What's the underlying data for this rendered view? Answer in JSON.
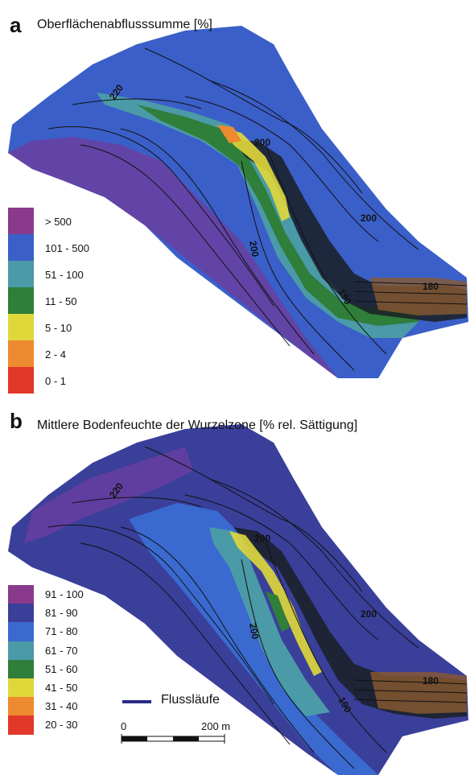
{
  "panel_a": {
    "letter": "a",
    "title": "Oberflächenabflusssumme [%]",
    "legend": [
      {
        "label": "> 500",
        "color": "#8a3a8c"
      },
      {
        "label": "101 - 500",
        "color": "#3a5fc8"
      },
      {
        "label": "51 - 100",
        "color": "#4b9aa8"
      },
      {
        "label": "11 - 50",
        "color": "#2f7e3a"
      },
      {
        "label": "5 - 10",
        "color": "#e0d83a"
      },
      {
        "label": "2 - 4",
        "color": "#ee8a30"
      },
      {
        "label": "0 - 1",
        "color": "#e2382a"
      }
    ],
    "contour_labels": [
      "220",
      "200",
      "200",
      "200",
      "190",
      "180"
    ]
  },
  "panel_b": {
    "letter": "b",
    "title": "Mittlere Bodenfeuchte der Wurzelzone [% rel. Sättigung]",
    "legend": [
      {
        "label": "91 - 100",
        "color": "#8a3a8c"
      },
      {
        "label": "81 - 90",
        "color": "#3a3f9a"
      },
      {
        "label": "71 - 80",
        "color": "#3a6ad0"
      },
      {
        "label": "61 - 70",
        "color": "#4b9aa8"
      },
      {
        "label": "51 - 60",
        "color": "#2f7e3a"
      },
      {
        "label": "41 - 50",
        "color": "#e0d83a"
      },
      {
        "label": "31 - 40",
        "color": "#ee8a30"
      },
      {
        "label": "20 - 30",
        "color": "#e2382a"
      }
    ],
    "contour_labels": [
      "220",
      "200",
      "200",
      "200",
      "190",
      "180"
    ],
    "river_legend": "Flussläufe",
    "scale": {
      "start": "0",
      "end": "200 m"
    }
  }
}
